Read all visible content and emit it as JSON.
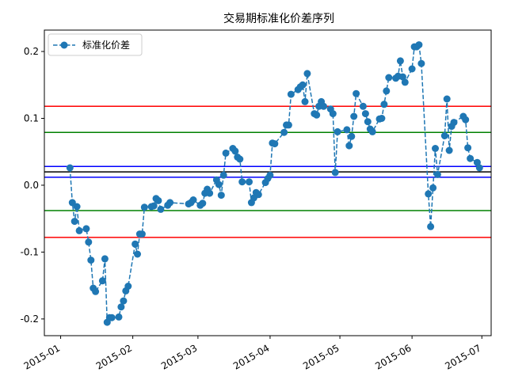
{
  "chart_data": {
    "type": "line",
    "title": "交易期标准化价差序列",
    "xlabel": "",
    "ylabel": "",
    "xlim": [
      "2014-12-25",
      "2015-07-05"
    ],
    "ylim": [
      -0.225,
      0.232
    ],
    "x_ticks": [
      "2015-01",
      "2015-02",
      "2015-03",
      "2015-04",
      "2015-05",
      "2015-06",
      "2015-07"
    ],
    "y_ticks": [
      -0.2,
      -0.1,
      0.0,
      0.1,
      0.2
    ],
    "y_tick_labels": [
      "-0.2",
      "-0.1",
      "0.0",
      "0.1",
      "0.2"
    ],
    "legend": {
      "location": "upper left",
      "entries": [
        "标准化价差"
      ]
    },
    "grid": false,
    "series": [
      {
        "name": "标准化价差",
        "color": "#1f77b4",
        "line_style": "dashed",
        "marker": "circle",
        "points": [
          [
            "2015-01-05",
            0.026
          ],
          [
            "2015-01-06",
            -0.026
          ],
          [
            "2015-01-07",
            -0.054
          ],
          [
            "2015-01-08",
            -0.032
          ],
          [
            "2015-01-09",
            -0.068
          ],
          [
            "2015-01-12",
            -0.065
          ],
          [
            "2015-01-13",
            -0.085
          ],
          [
            "2015-01-14",
            -0.112
          ],
          [
            "2015-01-15",
            -0.154
          ],
          [
            "2015-01-16",
            -0.159
          ],
          [
            "2015-01-19",
            -0.143
          ],
          [
            "2015-01-20",
            -0.11
          ],
          [
            "2015-01-21",
            -0.205
          ],
          [
            "2015-01-22",
            -0.198
          ],
          [
            "2015-01-23",
            -0.198
          ],
          [
            "2015-01-26",
            -0.197
          ],
          [
            "2015-01-27",
            -0.182
          ],
          [
            "2015-01-28",
            -0.173
          ],
          [
            "2015-01-29",
            -0.158
          ],
          [
            "2015-01-30",
            -0.151
          ],
          [
            "2015-02-02",
            -0.088
          ],
          [
            "2015-02-03",
            -0.103
          ],
          [
            "2015-02-04",
            -0.073
          ],
          [
            "2015-02-05",
            -0.073
          ],
          [
            "2015-02-06",
            -0.033
          ],
          [
            "2015-02-09",
            -0.032
          ],
          [
            "2015-02-10",
            -0.031
          ],
          [
            "2015-02-11",
            -0.02
          ],
          [
            "2015-02-12",
            -0.023
          ],
          [
            "2015-02-13",
            -0.036
          ],
          [
            "2015-02-16",
            -0.03
          ],
          [
            "2015-02-17",
            -0.026
          ],
          [
            "2015-02-25",
            -0.028
          ],
          [
            "2015-02-26",
            -0.026
          ],
          [
            "2015-02-27",
            -0.022
          ],
          [
            "2015-03-02",
            -0.03
          ],
          [
            "2015-03-03",
            -0.027
          ],
          [
            "2015-03-04",
            -0.012
          ],
          [
            "2015-03-05",
            -0.006
          ],
          [
            "2015-03-06",
            -0.012
          ],
          [
            "2015-03-09",
            0.008
          ],
          [
            "2015-03-10",
            0.001
          ],
          [
            "2015-03-11",
            -0.015
          ],
          [
            "2015-03-12",
            0.015
          ],
          [
            "2015-03-13",
            0.048
          ],
          [
            "2015-03-16",
            0.055
          ],
          [
            "2015-03-17",
            0.051
          ],
          [
            "2015-03-18",
            0.042
          ],
          [
            "2015-03-19",
            0.039
          ],
          [
            "2015-03-20",
            0.005
          ],
          [
            "2015-03-23",
            0.005
          ],
          [
            "2015-03-24",
            -0.026
          ],
          [
            "2015-03-25",
            -0.019
          ],
          [
            "2015-03-26",
            -0.011
          ],
          [
            "2015-03-27",
            -0.014
          ],
          [
            "2015-03-30",
            0.004
          ],
          [
            "2015-03-31",
            0.01
          ],
          [
            "2015-04-01",
            0.015
          ],
          [
            "2015-04-02",
            0.063
          ],
          [
            "2015-04-03",
            0.062
          ],
          [
            "2015-04-07",
            0.079
          ],
          [
            "2015-04-08",
            0.09
          ],
          [
            "2015-04-09",
            0.09
          ],
          [
            "2015-04-10",
            0.136
          ],
          [
            "2015-04-13",
            0.143
          ],
          [
            "2015-04-14",
            0.147
          ],
          [
            "2015-04-15",
            0.15
          ],
          [
            "2015-04-16",
            0.125
          ],
          [
            "2015-04-17",
            0.167
          ],
          [
            "2015-04-20",
            0.107
          ],
          [
            "2015-04-21",
            0.105
          ],
          [
            "2015-04-22",
            0.118
          ],
          [
            "2015-04-23",
            0.125
          ],
          [
            "2015-04-24",
            0.118
          ],
          [
            "2015-04-27",
            0.114
          ],
          [
            "2015-04-28",
            0.107
          ],
          [
            "2015-04-29",
            0.019
          ],
          [
            "2015-04-30",
            0.08
          ],
          [
            "2015-05-04",
            0.083
          ],
          [
            "2015-05-05",
            0.059
          ],
          [
            "2015-05-06",
            0.073
          ],
          [
            "2015-05-07",
            0.103
          ],
          [
            "2015-05-08",
            0.137
          ],
          [
            "2015-05-11",
            0.118
          ],
          [
            "2015-05-12",
            0.107
          ],
          [
            "2015-05-13",
            0.095
          ],
          [
            "2015-05-14",
            0.084
          ],
          [
            "2015-05-15",
            0.08
          ],
          [
            "2015-05-18",
            0.099
          ],
          [
            "2015-05-19",
            0.1
          ],
          [
            "2015-05-20",
            0.121
          ],
          [
            "2015-05-21",
            0.141
          ],
          [
            "2015-05-22",
            0.161
          ],
          [
            "2015-05-25",
            0.16
          ],
          [
            "2015-05-26",
            0.163
          ],
          [
            "2015-05-27",
            0.186
          ],
          [
            "2015-05-28",
            0.162
          ],
          [
            "2015-05-29",
            0.154
          ],
          [
            "2015-06-01",
            0.174
          ],
          [
            "2015-06-02",
            0.207
          ],
          [
            "2015-06-03",
            0.207
          ],
          [
            "2015-06-04",
            0.21
          ],
          [
            "2015-06-05",
            0.182
          ],
          [
            "2015-06-08",
            -0.013
          ],
          [
            "2015-06-09",
            -0.062
          ],
          [
            "2015-06-10",
            -0.004
          ],
          [
            "2015-06-11",
            0.055
          ],
          [
            "2015-06-12",
            0.016
          ],
          [
            "2015-06-15",
            0.074
          ],
          [
            "2015-06-16",
            0.129
          ],
          [
            "2015-06-17",
            0.052
          ],
          [
            "2015-06-18",
            0.088
          ],
          [
            "2015-06-19",
            0.094
          ],
          [
            "2015-06-23",
            0.103
          ],
          [
            "2015-06-24",
            0.098
          ],
          [
            "2015-06-25",
            0.056
          ],
          [
            "2015-06-26",
            0.04
          ],
          [
            "2015-06-29",
            0.034
          ],
          [
            "2015-06-30",
            0.026
          ]
        ]
      }
    ],
    "reference_lines": [
      {
        "y": 0.118,
        "color": "#ff0000"
      },
      {
        "y": 0.079,
        "color": "#008000"
      },
      {
        "y": 0.028,
        "color": "#0000ff"
      },
      {
        "y": 0.02,
        "color": "#000000"
      },
      {
        "y": 0.012,
        "color": "#0000ff"
      },
      {
        "y": -0.038,
        "color": "#008000"
      },
      {
        "y": -0.078,
        "color": "#ff0000"
      }
    ]
  }
}
